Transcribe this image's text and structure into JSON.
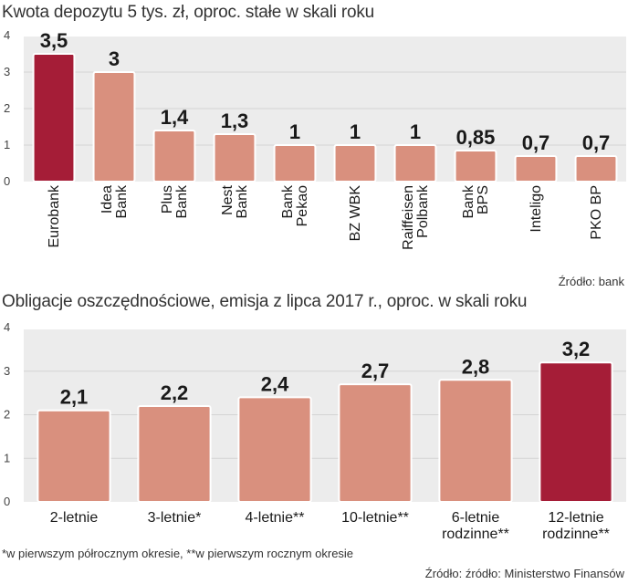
{
  "colors": {
    "bar": "#d9907e",
    "bar_highlight": "#a51d37",
    "plot_bg": "#ececec",
    "gridline": "#d4d4d4",
    "bar_border": "#ffffff"
  },
  "chart_data": [
    {
      "type": "bar",
      "title": "Kwota depozytu 5 tys. zł, oproc. stałe w skali roku",
      "source": "Źródło: bank",
      "categories": [
        "Eurobank",
        "Idea Bank",
        "Plus Bank",
        "Nest Bank",
        "Bank Pekao",
        "BZ WBK",
        "Raiffeisen Polbank",
        "Bank BPS",
        "Inteligo",
        "PKO BP"
      ],
      "category_lines": [
        [
          "Eurobank"
        ],
        [
          "Idea",
          "Bank"
        ],
        [
          "Plus",
          "Bank"
        ],
        [
          "Nest",
          "Bank"
        ],
        [
          "Bank",
          "Pekao"
        ],
        [
          "BZ WBK"
        ],
        [
          "Raiffeisen",
          "Polbank"
        ],
        [
          "Bank",
          "BPS"
        ],
        [
          "Inteligo"
        ],
        [
          "PKO BP"
        ]
      ],
      "values": [
        3.5,
        3,
        1.4,
        1.3,
        1,
        1,
        1,
        0.85,
        0.7,
        0.7
      ],
      "value_labels": [
        "3,5",
        "3",
        "1,4",
        "1,3",
        "1",
        "1",
        "1",
        "0,85",
        "0,7",
        "0,7"
      ],
      "highlight_index": 0,
      "yticks": [
        "0",
        "1",
        "2",
        "3",
        "4"
      ],
      "ylim": [
        0,
        4
      ],
      "xlabel": "",
      "ylabel": ""
    },
    {
      "type": "bar",
      "title": "Obligacje oszczędnościowe, emisja z lipca 2017 r., oproc. w skali roku",
      "source": "Źródło: źródło: Ministerstwo Finansów",
      "footnote": "*w pierwszym półrocznym okresie, **w pierwszym rocznym okresie",
      "categories": [
        "2-letnie",
        "3-letnie*",
        "4-letnie**",
        "10-letnie**",
        "6-letnie rodzinne**",
        "12-letnie rodzinne**"
      ],
      "category_lines": [
        [
          "2-letnie"
        ],
        [
          "3-letnie*"
        ],
        [
          "4-letnie**"
        ],
        [
          "10-letnie**"
        ],
        [
          "6-letnie",
          "rodzinne**"
        ],
        [
          "12-letnie",
          "rodzinne**"
        ]
      ],
      "values": [
        2.1,
        2.2,
        2.4,
        2.7,
        2.8,
        3.2
      ],
      "value_labels": [
        "2,1",
        "2,2",
        "2,4",
        "2,7",
        "2,8",
        "3,2"
      ],
      "highlight_index": 5,
      "yticks": [
        "0",
        "1",
        "2",
        "3",
        "4"
      ],
      "ylim": [
        0,
        4
      ],
      "xlabel": "",
      "ylabel": ""
    }
  ]
}
